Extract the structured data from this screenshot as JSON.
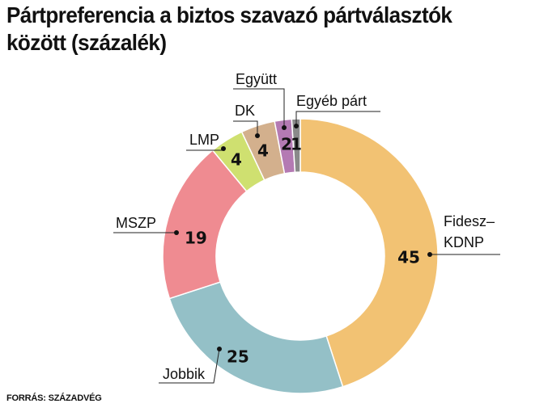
{
  "title": "Pártpreferencia a biztos szavazó pártválasztók között (százalék)",
  "source": "FORRÁS: SZÁZADVÉG",
  "chart_data": {
    "type": "pie",
    "donut": true,
    "title": "Pártpreferencia a biztos szavazó pártválasztók között (százalék)",
    "unit": "százalék",
    "slices": [
      {
        "name": "Fidesz–KDNP",
        "label_lines": [
          "Fidesz–",
          "KDNP"
        ],
        "value": 45,
        "color": "#f2c273"
      },
      {
        "name": "Jobbik",
        "label_lines": [
          "Jobbik"
        ],
        "value": 25,
        "color": "#94c0c7"
      },
      {
        "name": "MSZP",
        "label_lines": [
          "MSZP"
        ],
        "value": 19,
        "color": "#ef8b91"
      },
      {
        "name": "LMP",
        "label_lines": [
          "LMP"
        ],
        "value": 4,
        "color": "#cfe070"
      },
      {
        "name": "DK",
        "label_lines": [
          "DK"
        ],
        "value": 4,
        "color": "#d3b08d"
      },
      {
        "name": "Együtt",
        "label_lines": [
          "Együtt"
        ],
        "value": 2,
        "color": "#b47ab3"
      },
      {
        "name": "Egyéb párt",
        "label_lines": [
          "Egyéb párt"
        ],
        "value": 1,
        "color": "#8a8a8a"
      }
    ]
  }
}
